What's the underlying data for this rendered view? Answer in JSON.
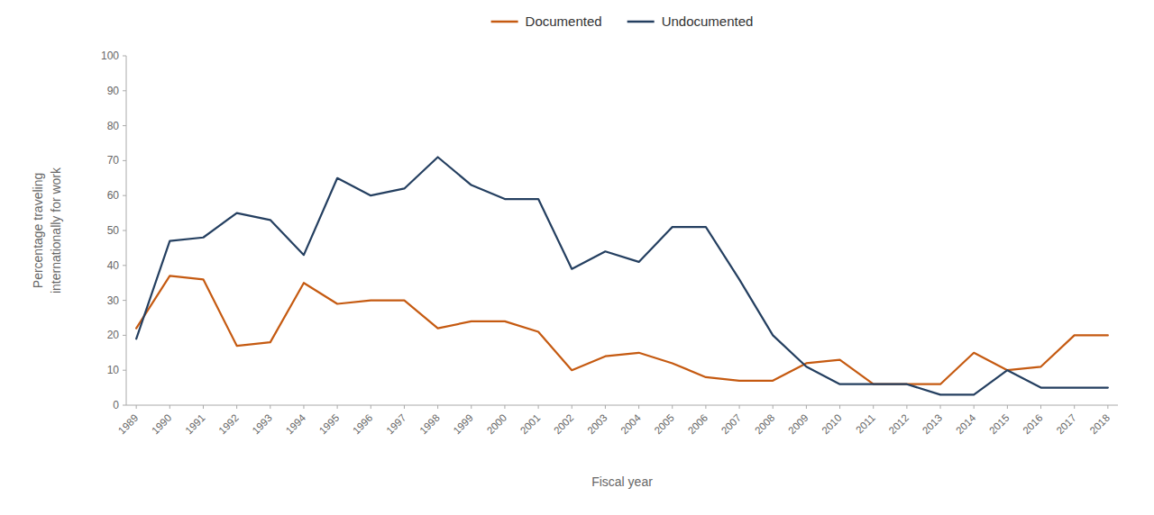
{
  "chart_data": {
    "type": "line",
    "x_label": "Fiscal year",
    "y_label": "Percentage traveling\ninternationally for work",
    "x": [
      1989,
      1990,
      1991,
      1992,
      1993,
      1994,
      1995,
      1996,
      1997,
      1998,
      1999,
      2000,
      2001,
      2002,
      2003,
      2004,
      2005,
      2006,
      2007,
      2008,
      2009,
      2010,
      2011,
      2012,
      2013,
      2014,
      2015,
      2016,
      2017,
      2018
    ],
    "series": [
      {
        "name": "Documented",
        "color": "#c55a11",
        "values": [
          22,
          37,
          36,
          17,
          18,
          35,
          29,
          30,
          30,
          22,
          24,
          24,
          21,
          10,
          14,
          15,
          12,
          8,
          7,
          7,
          12,
          13,
          6,
          6,
          6,
          15,
          10,
          11,
          20,
          20
        ]
      },
      {
        "name": "Undocumented",
        "color": "#243f60",
        "values": [
          19,
          47,
          48,
          55,
          53,
          43,
          65,
          60,
          62,
          71,
          63,
          59,
          59,
          39,
          44,
          41,
          51,
          51,
          36,
          20,
          11,
          6,
          6,
          6,
          3,
          3,
          10,
          5,
          5,
          5
        ]
      }
    ],
    "xlim": [
      1988.7,
      2018.3
    ],
    "xticks": [
      1989,
      1990,
      1991,
      1992,
      1993,
      1994,
      1995,
      1996,
      1997,
      1998,
      1999,
      2000,
      2001,
      2002,
      2003,
      2004,
      2005,
      2006,
      2007,
      2008,
      2009,
      2010,
      2011,
      2012,
      2013,
      2014,
      2015,
      2016,
      2017,
      2018
    ],
    "ylim": [
      0,
      100
    ],
    "yticks": [
      0,
      10,
      20,
      30,
      40,
      50,
      60,
      70,
      80,
      90,
      100
    ],
    "grid": false,
    "legend": "top"
  }
}
